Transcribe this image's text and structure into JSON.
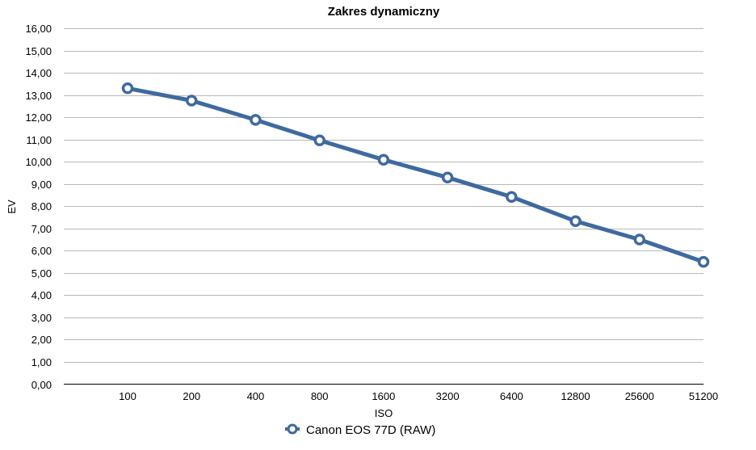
{
  "chart_data": {
    "type": "line",
    "title": "Zakres dynamiczny",
    "xlabel": "ISO",
    "ylabel": "EV",
    "categories": [
      "100",
      "200",
      "400",
      "800",
      "1600",
      "3200",
      "6400",
      "12800",
      "25600",
      "51200"
    ],
    "series": [
      {
        "name": "Canon EOS 77D (RAW)",
        "values": [
          13.3,
          12.75,
          11.88,
          10.96,
          10.09,
          9.29,
          8.42,
          7.33,
          6.5,
          5.5
        ],
        "color": "#3e6a9f",
        "marker": "hollow-circle"
      }
    ],
    "ylim": [
      0,
      16
    ],
    "ytick_step": 1,
    "ytick_labels": [
      "0,00",
      "1,00",
      "2,00",
      "3,00",
      "4,00",
      "5,00",
      "6,00",
      "7,00",
      "8,00",
      "9,00",
      "10,00",
      "11,00",
      "12,00",
      "13,00",
      "14,00",
      "15,00",
      "16,00"
    ],
    "grid": "horizontal",
    "legend_position": "bottom-center"
  }
}
